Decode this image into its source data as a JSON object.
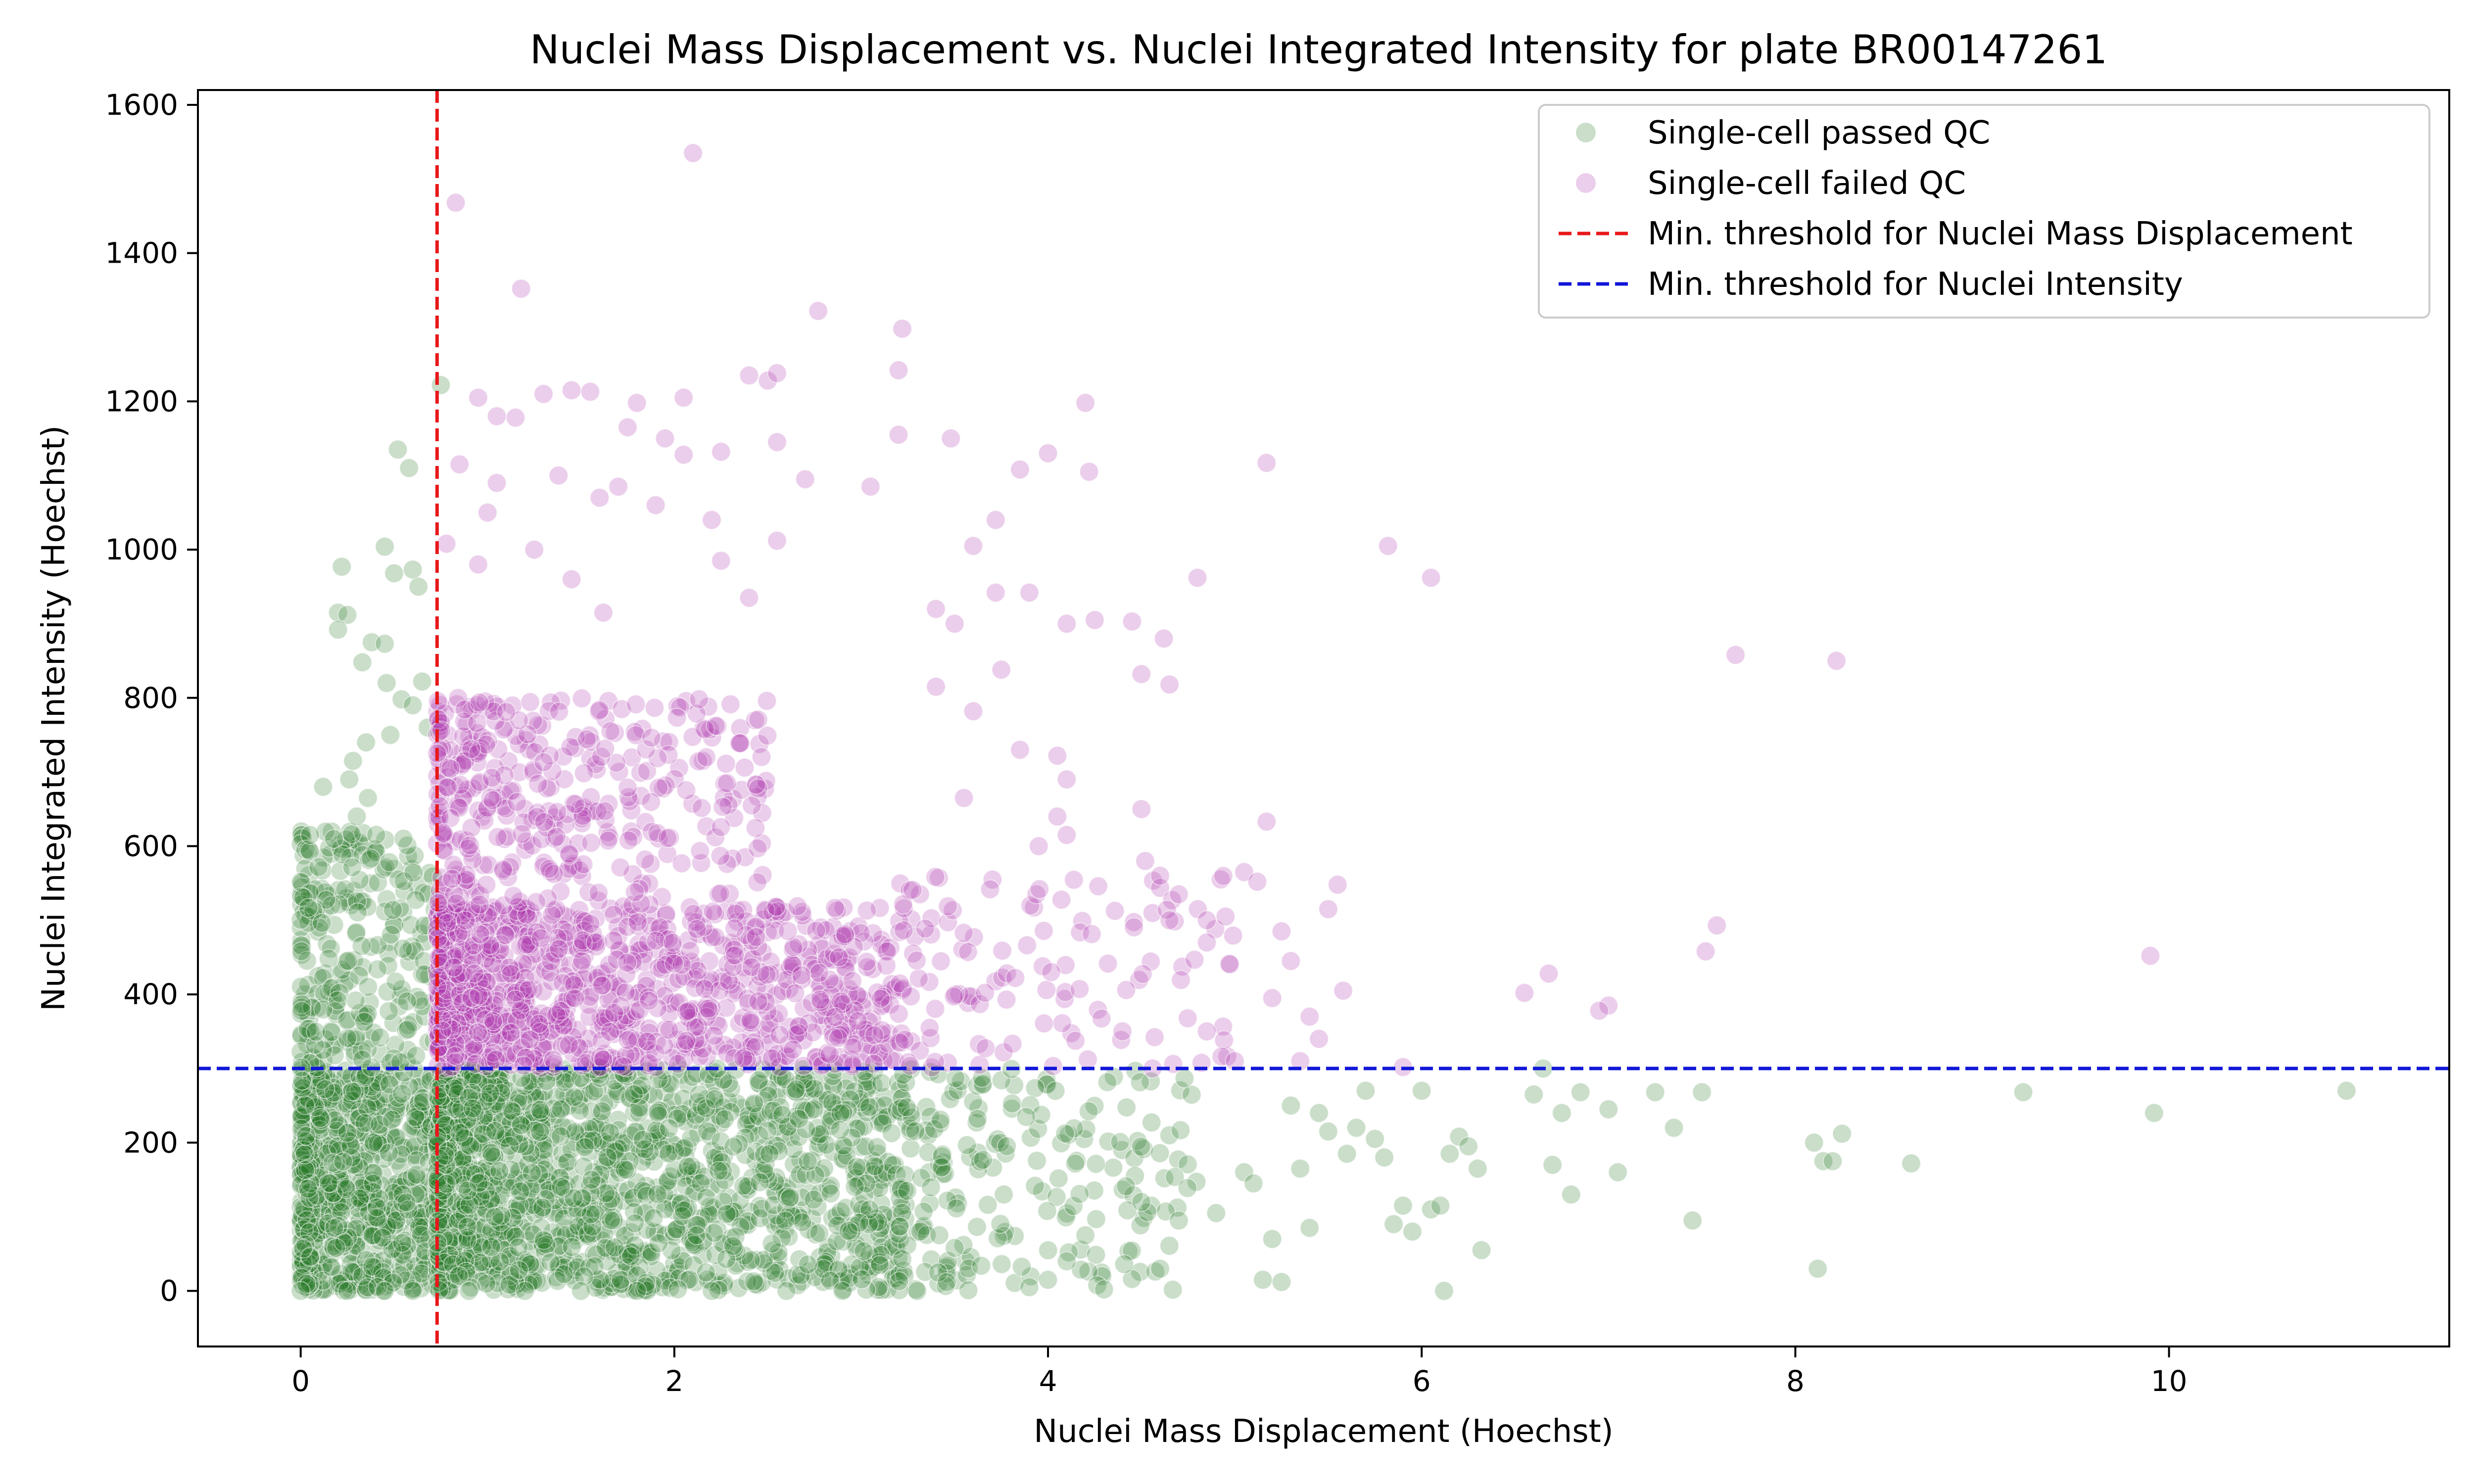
{
  "chart_data": {
    "type": "scatter",
    "title": "Nuclei Mass Displacement vs. Nuclei Integrated Intensity for plate BR00147261",
    "xlabel": "Nuclei Mass Displacement (Hoechst)",
    "ylabel": "Nuclei Integrated Intensity (Hoechst)",
    "xlim": [
      -0.55,
      11.5
    ],
    "ylim": [
      -75,
      1620
    ],
    "x_ticks": [
      0,
      2,
      4,
      6,
      8,
      10
    ],
    "y_ticks": [
      0,
      200,
      400,
      600,
      800,
      1000,
      1200,
      1400,
      1600
    ],
    "grid": false,
    "legend_position": "top-right",
    "thresholds": [
      {
        "name": "Min. threshold for Nuclei Mass Displacement",
        "axis": "x",
        "value": 0.73,
        "color": "#e8171a",
        "style": "dashed"
      },
      {
        "name": "Min. threshold for Nuclei Intensity",
        "axis": "y",
        "value": 300,
        "color": "#1016d8",
        "style": "dashed"
      }
    ],
    "series": [
      {
        "name": "Single-cell passed QC",
        "color": "#2d7d2d",
        "opacity": 0.25,
        "dense_regions": [
          {
            "x": [
              0.0,
              0.73
            ],
            "y": [
              0,
              300
            ],
            "count": 700
          },
          {
            "x": [
              0.73,
              3.2
            ],
            "y": [
              0,
              300
            ],
            "count": 1500
          },
          {
            "x": [
              3.2,
              4.8
            ],
            "y": [
              0,
              300
            ],
            "count": 220
          },
          {
            "x": [
              0.0,
              0.73
            ],
            "y": [
              300,
              620
            ],
            "count": 260
          }
        ],
        "points": [
          [
            0.75,
            1222
          ],
          [
            0.52,
            1135
          ],
          [
            0.58,
            1110
          ],
          [
            0.22,
            977
          ],
          [
            0.2,
            915
          ],
          [
            0.25,
            912
          ],
          [
            0.2,
            892
          ],
          [
            0.45,
            1004
          ],
          [
            0.5,
            968
          ],
          [
            0.6,
            973
          ],
          [
            0.63,
            950
          ],
          [
            0.38,
            875
          ],
          [
            0.45,
            873
          ],
          [
            0.33,
            848
          ],
          [
            0.46,
            820
          ],
          [
            0.65,
            822
          ],
          [
            0.54,
            798
          ],
          [
            0.6,
            790
          ],
          [
            0.35,
            740
          ],
          [
            0.28,
            715
          ],
          [
            0.26,
            690
          ],
          [
            0.12,
            680
          ],
          [
            0.05,
            615
          ],
          [
            0.68,
            760
          ],
          [
            0.48,
            750
          ],
          [
            0.36,
            665
          ],
          [
            0.55,
            610
          ],
          [
            0.3,
            640
          ],
          [
            0.0,
            0
          ],
          [
            0.25,
            0
          ],
          [
            0.45,
            0
          ],
          [
            0.6,
            0
          ],
          [
            0.9,
            0
          ],
          [
            1.2,
            0
          ],
          [
            1.5,
            0
          ],
          [
            1.8,
            0
          ],
          [
            2.2,
            0
          ],
          [
            2.6,
            0
          ],
          [
            2.9,
            0
          ],
          [
            3.3,
            0
          ],
          [
            3.9,
            5
          ],
          [
            4.3,
            2
          ],
          [
            3.1,
            35
          ],
          [
            3.5,
            58
          ],
          [
            4.1,
            40
          ],
          [
            4.2,
            75
          ],
          [
            4.5,
            120
          ],
          [
            4.7,
            95
          ],
          [
            4.9,
            105
          ],
          [
            5.05,
            160
          ],
          [
            5.1,
            145
          ],
          [
            5.2,
            70
          ],
          [
            5.3,
            250
          ],
          [
            5.35,
            165
          ],
          [
            5.4,
            85
          ],
          [
            5.45,
            240
          ],
          [
            5.5,
            215
          ],
          [
            5.6,
            185
          ],
          [
            5.65,
            220
          ],
          [
            5.7,
            270
          ],
          [
            5.75,
            205
          ],
          [
            5.8,
            180
          ],
          [
            5.85,
            90
          ],
          [
            5.9,
            115
          ],
          [
            5.95,
            80
          ],
          [
            6.0,
            270
          ],
          [
            6.05,
            110
          ],
          [
            6.1,
            115
          ],
          [
            6.12,
            0
          ],
          [
            6.15,
            185
          ],
          [
            6.2,
            208
          ],
          [
            6.25,
            195
          ],
          [
            6.3,
            165
          ],
          [
            6.32,
            55
          ],
          [
            6.6,
            265
          ],
          [
            6.65,
            300
          ],
          [
            6.7,
            170
          ],
          [
            6.75,
            240
          ],
          [
            6.8,
            130
          ],
          [
            6.85,
            268
          ],
          [
            7.0,
            245
          ],
          [
            7.05,
            160
          ],
          [
            7.25,
            268
          ],
          [
            7.35,
            220
          ],
          [
            7.5,
            268
          ],
          [
            7.45,
            95
          ],
          [
            8.12,
            30
          ],
          [
            8.1,
            200
          ],
          [
            8.15,
            175
          ],
          [
            8.25,
            212
          ],
          [
            8.2,
            175
          ],
          [
            8.62,
            172
          ],
          [
            9.22,
            268
          ],
          [
            9.92,
            240
          ],
          [
            10.95,
            270
          ],
          [
            5.15,
            15
          ],
          [
            5.25,
            12
          ],
          [
            4.6,
            30
          ],
          [
            4.0,
            15
          ]
        ]
      },
      {
        "name": "Single-cell failed QC",
        "color": "#b03cb0",
        "opacity": 0.25,
        "dense_regions": [
          {
            "x": [
              0.73,
              3.2
            ],
            "y": [
              300,
              520
            ],
            "count": 1000
          },
          {
            "x": [
              0.73,
              2.5
            ],
            "y": [
              520,
              800
            ],
            "count": 380
          },
          {
            "x": [
              3.2,
              5.0
            ],
            "y": [
              300,
              560
            ],
            "count": 130
          }
        ],
        "points": [
          [
            2.1,
            1535
          ],
          [
            0.83,
            1468
          ],
          [
            1.18,
            1352
          ],
          [
            2.77,
            1322
          ],
          [
            3.22,
            1298
          ],
          [
            3.2,
            1242
          ],
          [
            2.4,
            1235
          ],
          [
            2.5,
            1228
          ],
          [
            2.55,
            1238
          ],
          [
            4.2,
            1198
          ],
          [
            1.3,
            1210
          ],
          [
            1.45,
            1215
          ],
          [
            1.55,
            1213
          ],
          [
            0.95,
            1205
          ],
          [
            2.05,
            1205
          ],
          [
            1.8,
            1198
          ],
          [
            3.48,
            1150
          ],
          [
            3.2,
            1155
          ],
          [
            5.17,
            1117
          ],
          [
            4.0,
            1130
          ],
          [
            3.85,
            1108
          ],
          [
            4.22,
            1105
          ],
          [
            1.05,
            1180
          ],
          [
            1.15,
            1178
          ],
          [
            1.75,
            1165
          ],
          [
            2.55,
            1145
          ],
          [
            1.95,
            1150
          ],
          [
            2.25,
            1132
          ],
          [
            2.05,
            1128
          ],
          [
            3.6,
            1005
          ],
          [
            3.72,
            1040
          ],
          [
            3.05,
            1085
          ],
          [
            2.7,
            1095
          ],
          [
            2.55,
            1012
          ],
          [
            2.25,
            985
          ],
          [
            2.4,
            935
          ],
          [
            4.8,
            962
          ],
          [
            5.82,
            1005
          ],
          [
            6.05,
            962
          ],
          [
            3.72,
            942
          ],
          [
            3.4,
            920
          ],
          [
            3.5,
            900
          ],
          [
            3.9,
            942
          ],
          [
            4.1,
            900
          ],
          [
            4.25,
            905
          ],
          [
            4.45,
            903
          ],
          [
            4.62,
            880
          ],
          [
            4.5,
            832
          ],
          [
            4.65,
            818
          ],
          [
            3.75,
            838
          ],
          [
            3.4,
            815
          ],
          [
            3.6,
            782
          ],
          [
            3.85,
            730
          ],
          [
            4.05,
            722
          ],
          [
            4.1,
            690
          ],
          [
            3.55,
            665
          ],
          [
            4.5,
            650
          ],
          [
            4.05,
            640
          ],
          [
            4.1,
            615
          ],
          [
            3.95,
            600
          ],
          [
            4.52,
            580
          ],
          [
            4.6,
            560
          ],
          [
            4.7,
            535
          ],
          [
            4.65,
            500
          ],
          [
            4.85,
            500
          ],
          [
            4.95,
            505
          ],
          [
            4.85,
            470
          ],
          [
            5.05,
            565
          ],
          [
            5.12,
            552
          ],
          [
            5.17,
            633
          ],
          [
            5.25,
            485
          ],
          [
            5.3,
            445
          ],
          [
            5.5,
            515
          ],
          [
            5.55,
            548
          ],
          [
            5.2,
            395
          ],
          [
            5.4,
            370
          ],
          [
            5.45,
            340
          ],
          [
            5.35,
            310
          ],
          [
            5.58,
            405
          ],
          [
            5.0,
            310
          ],
          [
            4.85,
            350
          ],
          [
            7.68,
            858
          ],
          [
            8.22,
            850
          ],
          [
            7.58,
            493
          ],
          [
            7.52,
            458
          ],
          [
            9.9,
            452
          ],
          [
            6.68,
            428
          ],
          [
            6.55,
            402
          ],
          [
            7.0,
            385
          ],
          [
            6.95,
            378
          ],
          [
            5.9,
            302
          ],
          [
            0.85,
            1115
          ],
          [
            0.78,
            1008
          ],
          [
            1.05,
            1090
          ],
          [
            1.38,
            1100
          ],
          [
            1.6,
            1070
          ],
          [
            1.7,
            1085
          ],
          [
            1.9,
            1060
          ],
          [
            2.2,
            1040
          ],
          [
            1.0,
            1050
          ],
          [
            1.25,
            1000
          ],
          [
            1.45,
            960
          ],
          [
            0.95,
            980
          ],
          [
            1.62,
            915
          ]
        ]
      }
    ]
  },
  "legend": {
    "items": [
      {
        "label": "Single-cell passed QC",
        "kind": "marker",
        "color": "#2d7d2d"
      },
      {
        "label": "Single-cell failed QC",
        "kind": "marker",
        "color": "#b03cb0"
      },
      {
        "label": "Min. threshold for Nuclei Mass Displacement",
        "kind": "dashed-line",
        "color": "#e8171a"
      },
      {
        "label": "Min. threshold for Nuclei Intensity",
        "kind": "dashed-line",
        "color": "#1016d8"
      }
    ]
  }
}
